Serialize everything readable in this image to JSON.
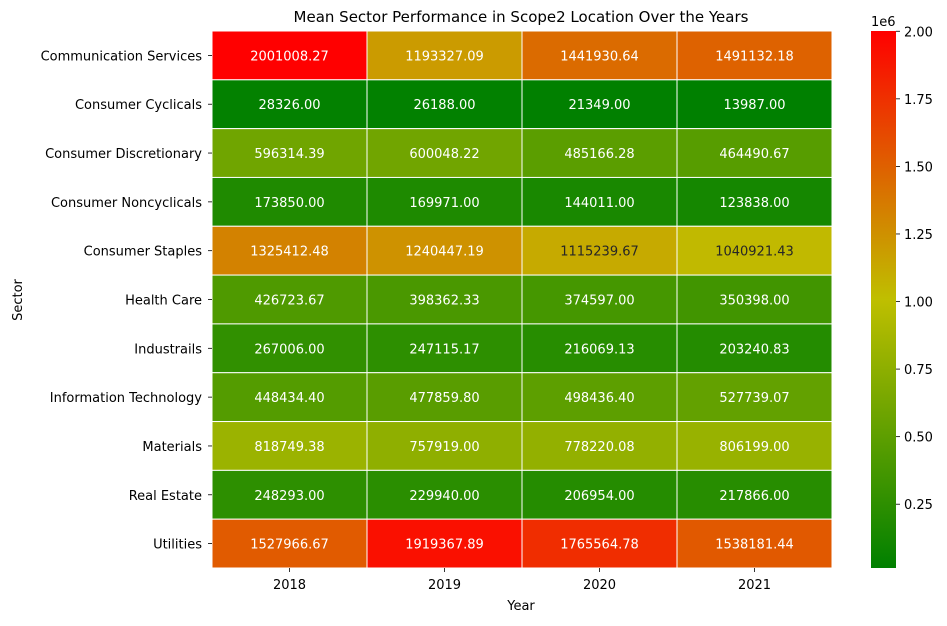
{
  "chart_data": {
    "type": "heatmap",
    "title": "Mean Sector Performance in Scope2 Location Over the Years",
    "xlabel": "Year",
    "ylabel": "Sector",
    "x": [
      "2018",
      "2019",
      "2020",
      "2021"
    ],
    "y": [
      "Communication Services",
      "Consumer Cyclicals",
      "Consumer Discretionary",
      "Consumer Noncyclicals",
      "Consumer Staples",
      "Health Care",
      "Industrails",
      "Information Technology",
      "Materials",
      "Real Estate",
      "Utilities"
    ],
    "values": [
      [
        2001008.27,
        1193327.09,
        1441930.64,
        1491132.18
      ],
      [
        28326.0,
        26188.0,
        21349.0,
        13987.0
      ],
      [
        596314.39,
        600048.22,
        485166.28,
        464490.67
      ],
      [
        173850.0,
        169971.0,
        144011.0,
        123838.0
      ],
      [
        1325412.48,
        1240447.19,
        1115239.67,
        1040921.43
      ],
      [
        426723.67,
        398362.33,
        374597.0,
        350398.0
      ],
      [
        267006.0,
        247115.17,
        216069.13,
        203240.83
      ],
      [
        448434.4,
        477859.8,
        498436.4,
        527739.07
      ],
      [
        818749.38,
        757919.0,
        778220.08,
        806199.0
      ],
      [
        248293.0,
        229940.0,
        206954.0,
        217866.0
      ],
      [
        1527966.67,
        1919367.89,
        1765564.78,
        1538181.44
      ]
    ],
    "value_labels": [
      [
        "2001008.27",
        "1193327.09",
        "1441930.64",
        "1491132.18"
      ],
      [
        "28326.00",
        "26188.00",
        "21349.00",
        "13987.00"
      ],
      [
        "596314.39",
        "600048.22",
        "485166.28",
        "464490.67"
      ],
      [
        "173850.00",
        "169971.00",
        "144011.00",
        "123838.00"
      ],
      [
        "1325412.48",
        "1240447.19",
        "1115239.67",
        "1040921.43"
      ],
      [
        "426723.67",
        "398362.33",
        "374597.00",
        "350398.00"
      ],
      [
        "267006.00",
        "247115.17",
        "216069.13",
        "203240.83"
      ],
      [
        "448434.40",
        "477859.80",
        "498436.40",
        "527739.07"
      ],
      [
        "818749.38",
        "757919.00",
        "778220.08",
        "806199.00"
      ],
      [
        "248293.00",
        "229940.00",
        "206954.00",
        "217866.00"
      ],
      [
        "1527966.67",
        "1919367.89",
        "1765564.78",
        "1538181.44"
      ]
    ],
    "colorbar": {
      "multiplier_label": "1e6",
      "ticks": [
        0.25,
        0.5,
        0.75,
        1.0,
        1.25,
        1.5,
        1.75,
        2.0
      ],
      "tick_labels": [
        "0.25",
        "0.50",
        "0.75",
        "1.00",
        "1.25",
        "1.50",
        "1.75",
        "2.00"
      ],
      "range": [
        13987.0,
        2001008.27
      ],
      "colors": [
        "#008000",
        "#bfbf00",
        "#ff0000"
      ]
    }
  }
}
